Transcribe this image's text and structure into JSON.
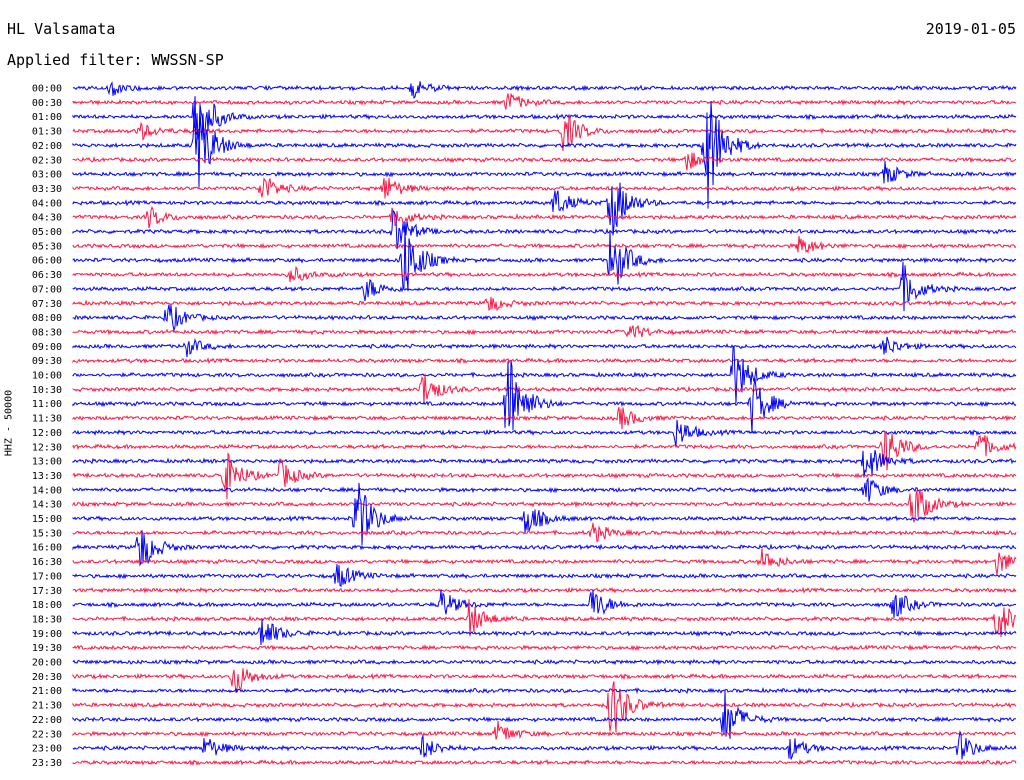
{
  "header": {
    "station": "HL Valsamata",
    "date": "2019-01-05",
    "filter_text": "Applied filter: WWSSN-SP"
  },
  "chart_data": {
    "type": "line",
    "ylabel": "HHZ - 50000",
    "colors": {
      "odd_trace": "#0000ff",
      "even_trace": "#ff1744"
    },
    "rows": [
      "00:00",
      "00:30",
      "01:00",
      "01:30",
      "02:00",
      "02:30",
      "03:00",
      "03:30",
      "04:00",
      "04:30",
      "05:00",
      "05:30",
      "06:00",
      "06:30",
      "07:00",
      "07:30",
      "08:00",
      "08:30",
      "09:00",
      "09:30",
      "10:00",
      "10:30",
      "11:00",
      "11:30",
      "12:00",
      "12:30",
      "13:00",
      "13:30",
      "14:00",
      "14:30",
      "15:00",
      "15:30",
      "16:00",
      "16:30",
      "17:00",
      "17:30",
      "18:00",
      "18:30",
      "19:00",
      "19:30",
      "20:00",
      "20:30",
      "21:00",
      "21:30",
      "22:00",
      "22:30",
      "23:00",
      "23:30"
    ],
    "events": [
      {
        "row": 0,
        "t": 0.04,
        "amp": 0.5
      },
      {
        "row": 0,
        "t": 0.36,
        "amp": 0.6
      },
      {
        "row": 1,
        "t": 0.46,
        "amp": 0.7
      },
      {
        "row": 2,
        "t": 0.13,
        "amp": 3.0
      },
      {
        "row": 3,
        "t": 0.07,
        "amp": 0.6
      },
      {
        "row": 3,
        "t": 0.52,
        "amp": 1.4
      },
      {
        "row": 4,
        "t": 0.13,
        "amp": 3.5
      },
      {
        "row": 4,
        "t": 0.67,
        "amp": 5.0
      },
      {
        "row": 5,
        "t": 0.65,
        "amp": 0.7
      },
      {
        "row": 6,
        "t": 0.86,
        "amp": 0.8
      },
      {
        "row": 7,
        "t": 0.2,
        "amp": 1.0
      },
      {
        "row": 7,
        "t": 0.33,
        "amp": 0.9
      },
      {
        "row": 8,
        "t": 0.51,
        "amp": 1.0
      },
      {
        "row": 8,
        "t": 0.57,
        "amp": 2.5
      },
      {
        "row": 9,
        "t": 0.08,
        "amp": 0.7
      },
      {
        "row": 9,
        "t": 0.34,
        "amp": 0.8
      },
      {
        "row": 10,
        "t": 0.34,
        "amp": 1.6
      },
      {
        "row": 11,
        "t": 0.77,
        "amp": 0.7
      },
      {
        "row": 12,
        "t": 0.35,
        "amp": 3.0
      },
      {
        "row": 12,
        "t": 0.57,
        "amp": 2.5
      },
      {
        "row": 13,
        "t": 0.23,
        "amp": 0.6
      },
      {
        "row": 14,
        "t": 0.31,
        "amp": 0.8
      },
      {
        "row": 14,
        "t": 0.88,
        "amp": 1.6
      },
      {
        "row": 15,
        "t": 0.44,
        "amp": 0.6
      },
      {
        "row": 16,
        "t": 0.1,
        "amp": 1.1
      },
      {
        "row": 17,
        "t": 0.59,
        "amp": 0.6
      },
      {
        "row": 18,
        "t": 0.12,
        "amp": 0.6
      },
      {
        "row": 18,
        "t": 0.86,
        "amp": 0.7
      },
      {
        "row": 20,
        "t": 0.7,
        "amp": 2.2
      },
      {
        "row": 21,
        "t": 0.37,
        "amp": 1.3
      },
      {
        "row": 22,
        "t": 0.46,
        "amp": 4.0
      },
      {
        "row": 22,
        "t": 0.72,
        "amp": 2.0
      },
      {
        "row": 23,
        "t": 0.58,
        "amp": 0.8
      },
      {
        "row": 24,
        "t": 0.64,
        "amp": 1.0
      },
      {
        "row": 25,
        "t": 0.86,
        "amp": 1.8
      },
      {
        "row": 25,
        "t": 0.96,
        "amp": 1.0
      },
      {
        "row": 26,
        "t": 0.84,
        "amp": 1.5
      },
      {
        "row": 27,
        "t": 0.16,
        "amp": 1.8
      },
      {
        "row": 27,
        "t": 0.22,
        "amp": 1.0
      },
      {
        "row": 28,
        "t": 0.84,
        "amp": 1.0
      },
      {
        "row": 29,
        "t": 0.89,
        "amp": 1.8
      },
      {
        "row": 30,
        "t": 0.3,
        "amp": 2.8
      },
      {
        "row": 30,
        "t": 0.48,
        "amp": 1.2
      },
      {
        "row": 31,
        "t": 0.55,
        "amp": 0.7
      },
      {
        "row": 32,
        "t": 0.07,
        "amp": 1.8
      },
      {
        "row": 33,
        "t": 0.73,
        "amp": 0.8
      },
      {
        "row": 33,
        "t": 0.98,
        "amp": 0.9
      },
      {
        "row": 34,
        "t": 0.28,
        "amp": 0.9
      },
      {
        "row": 36,
        "t": 0.39,
        "amp": 1.0
      },
      {
        "row": 36,
        "t": 0.55,
        "amp": 1.2
      },
      {
        "row": 36,
        "t": 0.87,
        "amp": 1.0
      },
      {
        "row": 37,
        "t": 0.42,
        "amp": 1.2
      },
      {
        "row": 37,
        "t": 0.98,
        "amp": 1.5
      },
      {
        "row": 38,
        "t": 0.2,
        "amp": 1.2
      },
      {
        "row": 41,
        "t": 0.17,
        "amp": 1.3
      },
      {
        "row": 43,
        "t": 0.57,
        "amp": 2.5
      },
      {
        "row": 44,
        "t": 0.69,
        "amp": 2.0
      },
      {
        "row": 45,
        "t": 0.45,
        "amp": 0.8
      },
      {
        "row": 46,
        "t": 0.14,
        "amp": 0.8
      },
      {
        "row": 46,
        "t": 0.37,
        "amp": 0.8
      },
      {
        "row": 46,
        "t": 0.76,
        "amp": 0.8
      },
      {
        "row": 46,
        "t": 0.94,
        "amp": 1.0
      }
    ]
  }
}
